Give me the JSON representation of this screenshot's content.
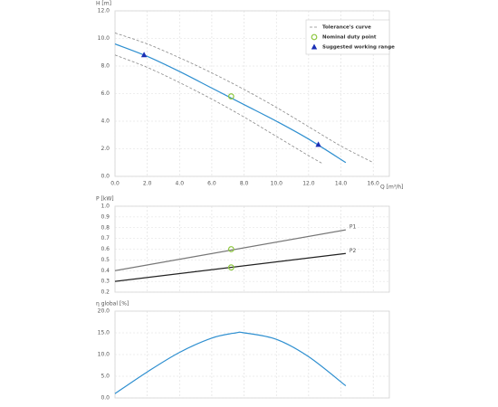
{
  "chart_data": [
    {
      "type": "line",
      "ylabel": "H [m]",
      "xlabel": "Q [m³/h]",
      "grid": true,
      "legend": "upper right",
      "xtick_labels": true,
      "xlim": [
        0,
        17
      ],
      "ylim": [
        0,
        12
      ],
      "xticks": [
        {
          "value": 0,
          "label": "0.0"
        },
        {
          "value": 2,
          "label": "2.0"
        },
        {
          "value": 4,
          "label": "4.0"
        },
        {
          "value": 6,
          "label": "6.0"
        },
        {
          "value": 8,
          "label": "8.0"
        },
        {
          "value": 10,
          "label": "10.0"
        },
        {
          "value": 12,
          "label": "12.0"
        },
        {
          "value": 14,
          "label": "14.0"
        },
        {
          "value": 16,
          "label": "16.0"
        }
      ],
      "yticks": [
        {
          "value": 0,
          "label": "0.0"
        },
        {
          "value": 2,
          "label": "2.0"
        },
        {
          "value": 4,
          "label": "4.0"
        },
        {
          "value": 6,
          "label": "6.0"
        },
        {
          "value": 8,
          "label": "8.0"
        },
        {
          "value": 10,
          "label": "10.0"
        },
        {
          "value": 12,
          "label": "12.0"
        }
      ],
      "series": [
        {
          "name": "Tolerance's curve",
          "color": "#888888",
          "style": "dashed",
          "x": [
            0,
            2,
            4,
            6,
            8,
            10,
            12,
            14,
            16
          ],
          "values": [
            10.4,
            9.6,
            8.6,
            7.5,
            6.3,
            5.0,
            3.6,
            2.2,
            1.0
          ]
        },
        {
          "color": "#888888",
          "style": "dashed",
          "x": [
            0,
            2,
            4,
            6,
            8,
            10,
            12,
            12.9
          ],
          "values": [
            8.8,
            7.9,
            6.8,
            5.6,
            4.3,
            2.9,
            1.5,
            0.9
          ]
        },
        {
          "color": "#2e8fd0",
          "style": "solid",
          "x": [
            0,
            2,
            4,
            6,
            8,
            10,
            12,
            14.3
          ],
          "values": [
            9.6,
            8.7,
            7.6,
            6.4,
            5.2,
            4.0,
            2.7,
            1.0
          ]
        },
        {
          "name": "Nominal duty point",
          "color": "#8dc63f",
          "marker": "circle",
          "x": [
            7.2
          ],
          "values": [
            5.8
          ]
        },
        {
          "name": "Suggested working range",
          "color": "#1a2fb5",
          "marker": "triangle",
          "x": [
            1.8,
            12.6
          ],
          "values": [
            8.8,
            2.3
          ]
        }
      ]
    },
    {
      "type": "line",
      "ylabel": "P [kW]",
      "grid": true,
      "xtick_labels": false,
      "end_labels": true,
      "xlim": [
        0,
        17
      ],
      "ylim": [
        0.2,
        1.0
      ],
      "xticks": [
        0,
        2,
        4,
        6,
        8,
        10,
        12,
        14,
        16
      ],
      "yticks": [
        0.2,
        0.3,
        0.4,
        0.5,
        0.6,
        0.7,
        0.8,
        0.9,
        {
          "value": 1.0,
          "label": "1.0"
        }
      ],
      "series": [
        {
          "name": "P1",
          "color": "#777777",
          "style": "solid",
          "x": [
            0,
            14.3
          ],
          "values": [
            0.4,
            0.78
          ]
        },
        {
          "name": "P2",
          "color": "#222222",
          "style": "solid",
          "x": [
            0,
            14.3
          ],
          "values": [
            0.3,
            0.56
          ]
        },
        {
          "color": "#8dc63f",
          "marker": "circle",
          "x": [
            7.2,
            7.2
          ],
          "values": [
            0.6,
            0.43
          ]
        }
      ]
    },
    {
      "type": "line",
      "ylabel": "η global [%]",
      "grid": true,
      "xtick_labels": false,
      "xlim": [
        0,
        17
      ],
      "ylim": [
        0,
        20
      ],
      "xticks": [
        0,
        2,
        4,
        6,
        8,
        10,
        12,
        14,
        16
      ],
      "yticks": [
        {
          "value": 0,
          "label": "0.0"
        },
        {
          "value": 5,
          "label": "5.0"
        },
        {
          "value": 10,
          "label": "10.0"
        },
        {
          "value": 15,
          "label": "15.0"
        },
        {
          "value": 20,
          "label": "20.0"
        }
      ],
      "series": [
        {
          "color": "#2e8fd0",
          "style": "solid",
          "x": [
            0,
            2,
            4,
            6,
            7.5,
            8,
            10,
            12,
            14.3
          ],
          "values": [
            1.0,
            6.0,
            10.5,
            13.8,
            15.0,
            15.0,
            13.5,
            9.5,
            2.8
          ]
        }
      ]
    }
  ]
}
